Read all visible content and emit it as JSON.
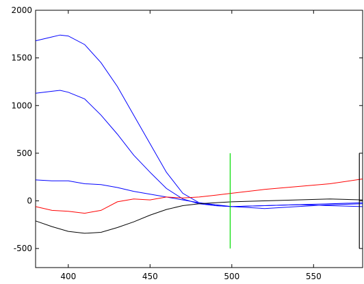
{
  "chart_data": {
    "type": "line",
    "title": "",
    "xlabel": "",
    "ylabel": "",
    "xlim": [
      380,
      580
    ],
    "ylim": [
      -700,
      2000
    ],
    "xticks": [
      400,
      450,
      500,
      550
    ],
    "yticks": [
      -500,
      0,
      500,
      1000,
      1500,
      2000
    ],
    "grid": false,
    "legend": "none",
    "series": [
      {
        "color": "#0000ff",
        "x": [
          380,
          390,
          395,
          400,
          410,
          420,
          430,
          440,
          450,
          460,
          470,
          480,
          490,
          500,
          520,
          540,
          560,
          580
        ],
        "y": [
          1680,
          1720,
          1740,
          1730,
          1640,
          1450,
          1200,
          900,
          600,
          300,
          80,
          -20,
          -50,
          -60,
          -50,
          -40,
          -30,
          -20
        ]
      },
      {
        "color": "#0000ff",
        "x": [
          380,
          390,
          395,
          400,
          410,
          420,
          430,
          440,
          450,
          460,
          470,
          480,
          490,
          500,
          520,
          540,
          560,
          580
        ],
        "y": [
          1130,
          1150,
          1160,
          1140,
          1070,
          900,
          700,
          480,
          300,
          130,
          20,
          -30,
          -50,
          -60,
          -50,
          -40,
          -50,
          -60
        ]
      },
      {
        "color": "#0000ff",
        "x": [
          380,
          390,
          400,
          410,
          420,
          430,
          440,
          450,
          460,
          470,
          480,
          490,
          500,
          520,
          540,
          560,
          580
        ],
        "y": [
          220,
          210,
          210,
          180,
          170,
          140,
          100,
          70,
          40,
          10,
          -20,
          -40,
          -60,
          -80,
          -60,
          -40,
          -30
        ]
      },
      {
        "color": "#ff0000",
        "x": [
          380,
          390,
          400,
          410,
          420,
          430,
          440,
          450,
          460,
          470,
          480,
          490,
          500,
          520,
          540,
          560,
          580
        ],
        "y": [
          -60,
          -100,
          -110,
          -130,
          -100,
          -10,
          20,
          10,
          40,
          30,
          40,
          60,
          80,
          120,
          150,
          180,
          230
        ]
      },
      {
        "color": "#000000",
        "x": [
          380,
          390,
          400,
          410,
          420,
          430,
          440,
          450,
          460,
          470,
          480,
          490,
          500,
          520,
          540,
          560,
          580
        ],
        "y": [
          -210,
          -270,
          -320,
          -340,
          -330,
          -280,
          -220,
          -150,
          -90,
          -50,
          -30,
          -20,
          -10,
          0,
          10,
          20,
          10
        ]
      }
    ],
    "annotations": [
      {
        "type": "vline",
        "x": 499,
        "y_range": [
          -500,
          500
        ],
        "color": "#00dd00"
      },
      {
        "type": "vline",
        "x": 578,
        "y_range": [
          -500,
          500
        ],
        "color": "#000000"
      }
    ]
  }
}
